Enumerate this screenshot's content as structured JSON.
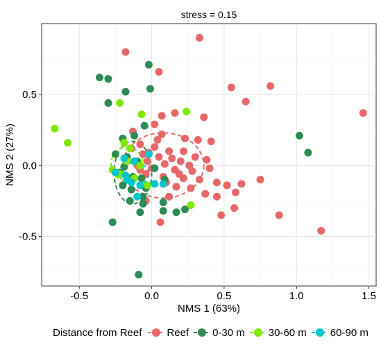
{
  "chart_data": {
    "type": "scatter",
    "title": "stress = 0.15",
    "xlabel": "NMS 1 (63%)",
    "ylabel": "NMS 2 (27%)",
    "xlim": [
      -0.76,
      1.55
    ],
    "ylim": [
      -0.85,
      1.0
    ],
    "x_ticks": [
      "-0.5",
      "0.0",
      "0.5",
      "1.0",
      "1.5"
    ],
    "y_ticks": [
      "-0.5",
      "0.0",
      "0.5"
    ],
    "grid": true,
    "legend_position": "bottom",
    "legend_title": "Distance from Reef",
    "series": [
      {
        "name": "Reef",
        "color": "#E8686A",
        "ellipse": {
          "cx": 0.08,
          "cy": 0.0,
          "rx": 0.28,
          "ry": 0.23
        },
        "points": [
          [
            -0.18,
            0.8
          ],
          [
            0.33,
            0.9
          ],
          [
            0.05,
            0.66
          ],
          [
            0.55,
            0.55
          ],
          [
            0.82,
            0.56
          ],
          [
            0.65,
            0.45
          ],
          [
            1.46,
            0.37
          ],
          [
            0.16,
            0.37
          ],
          [
            0.36,
            0.34
          ],
          [
            0.07,
            0.35
          ],
          [
            0.02,
            0.29
          ],
          [
            -0.13,
            0.24
          ],
          [
            0.07,
            0.22
          ],
          [
            0.23,
            0.19
          ],
          [
            0.41,
            0.17
          ],
          [
            0.32,
            0.18
          ],
          [
            -0.08,
            0.15
          ],
          [
            0.02,
            0.13
          ],
          [
            0.12,
            0.1
          ],
          [
            0.22,
            0.1
          ],
          [
            0.3,
            0.06
          ],
          [
            0.38,
            0.04
          ],
          [
            -0.06,
            0.08
          ],
          [
            0.05,
            0.06
          ],
          [
            0.14,
            0.05
          ],
          [
            -0.03,
            0.03
          ],
          [
            0.2,
            0.03
          ],
          [
            0.09,
            0.01
          ],
          [
            -0.1,
            0.0
          ],
          [
            0.0,
            -0.02
          ],
          [
            0.16,
            -0.03
          ],
          [
            0.28,
            -0.04
          ],
          [
            0.4,
            -0.02
          ],
          [
            -0.04,
            -0.06
          ],
          [
            0.08,
            -0.08
          ],
          [
            0.22,
            -0.09
          ],
          [
            0.33,
            -0.1
          ],
          [
            0.45,
            -0.12
          ],
          [
            0.52,
            -0.14
          ],
          [
            0.62,
            -0.13
          ],
          [
            0.75,
            -0.1
          ],
          [
            0.17,
            -0.15
          ],
          [
            0.27,
            -0.16
          ],
          [
            0.37,
            -0.2
          ],
          [
            0.45,
            -0.22
          ],
          [
            0.12,
            -0.22
          ],
          [
            -0.04,
            -0.25
          ],
          [
            0.57,
            -0.3
          ],
          [
            0.48,
            -0.35
          ],
          [
            0.88,
            -0.35
          ],
          [
            0.06,
            -0.4
          ],
          [
            1.17,
            -0.46
          ],
          [
            -0.08,
            -0.03
          ],
          [
            0.1,
            -0.12
          ],
          [
            0.04,
            0.18
          ],
          [
            -0.02,
            0.09
          ],
          [
            0.26,
            0.0
          ],
          [
            0.58,
            -0.19
          ],
          [
            -0.14,
            0.12
          ],
          [
            0.19,
            -0.06
          ]
        ]
      },
      {
        "name": "0-30 m",
        "color": "#2E8B57",
        "ellipse": {
          "cx": -0.13,
          "cy": -0.05,
          "rx": 0.13,
          "ry": 0.22
        },
        "points": [
          [
            -0.36,
            0.62
          ],
          [
            -0.3,
            0.61
          ],
          [
            -0.02,
            0.71
          ],
          [
            -0.18,
            0.52
          ],
          [
            -0.01,
            0.54
          ],
          [
            -0.3,
            0.44
          ],
          [
            1.02,
            0.21
          ],
          [
            1.08,
            0.09
          ],
          [
            -0.05,
            0.28
          ],
          [
            -0.2,
            0.19
          ],
          [
            -0.12,
            0.21
          ],
          [
            -0.25,
            0.08
          ],
          [
            -0.17,
            0.06
          ],
          [
            -0.1,
            0.03
          ],
          [
            -0.19,
            -0.01
          ],
          [
            -0.13,
            -0.08
          ],
          [
            -0.07,
            -0.09
          ],
          [
            -0.2,
            -0.14
          ],
          [
            -0.14,
            -0.17
          ],
          [
            0.09,
            -0.1
          ],
          [
            -0.04,
            -0.16
          ],
          [
            -0.06,
            -0.22
          ],
          [
            -0.15,
            -0.25
          ],
          [
            -0.06,
            -0.27
          ],
          [
            0.08,
            -0.26
          ],
          [
            -0.08,
            -0.33
          ],
          [
            0.08,
            -0.32
          ],
          [
            0.17,
            -0.33
          ],
          [
            0.23,
            -0.31
          ],
          [
            -0.27,
            -0.4
          ],
          [
            -0.09,
            -0.77
          ],
          [
            -0.22,
            -0.05
          ],
          [
            0.02,
            -0.02
          ]
        ]
      },
      {
        "name": "30-60 m",
        "color": "#80E800",
        "ellipse": {
          "cx": -0.17,
          "cy": 0.01,
          "rx": 0.11,
          "ry": 0.12
        },
        "points": [
          [
            -0.67,
            0.26
          ],
          [
            -0.58,
            0.16
          ],
          [
            -0.22,
            0.44
          ],
          [
            -0.07,
            0.36
          ],
          [
            0.24,
            0.38
          ],
          [
            -0.19,
            0.16
          ],
          [
            -0.15,
            0.12
          ],
          [
            -0.27,
            -0.03
          ],
          [
            -0.22,
            -0.06
          ],
          [
            -0.12,
            -0.09
          ],
          [
            -0.03,
            -0.14
          ],
          [
            0.27,
            -0.28
          ],
          [
            -0.17,
            0.03
          ],
          [
            -0.08,
            0.0
          ]
        ]
      },
      {
        "name": "60-90 m",
        "color": "#00C5CD",
        "ellipse": {
          "cx": -0.12,
          "cy": -0.06,
          "rx": 0.1,
          "ry": 0.08
        },
        "points": [
          [
            -0.02,
            0.08
          ],
          [
            -0.19,
            0.05
          ],
          [
            -0.12,
            0.03
          ],
          [
            -0.25,
            -0.05
          ],
          [
            -0.18,
            -0.07
          ],
          [
            -0.14,
            -0.12
          ],
          [
            -0.08,
            -0.14
          ],
          [
            0.02,
            -0.13
          ],
          [
            0.08,
            -0.13
          ],
          [
            -0.1,
            -0.22
          ],
          [
            -0.17,
            -0.1
          ]
        ]
      }
    ]
  }
}
